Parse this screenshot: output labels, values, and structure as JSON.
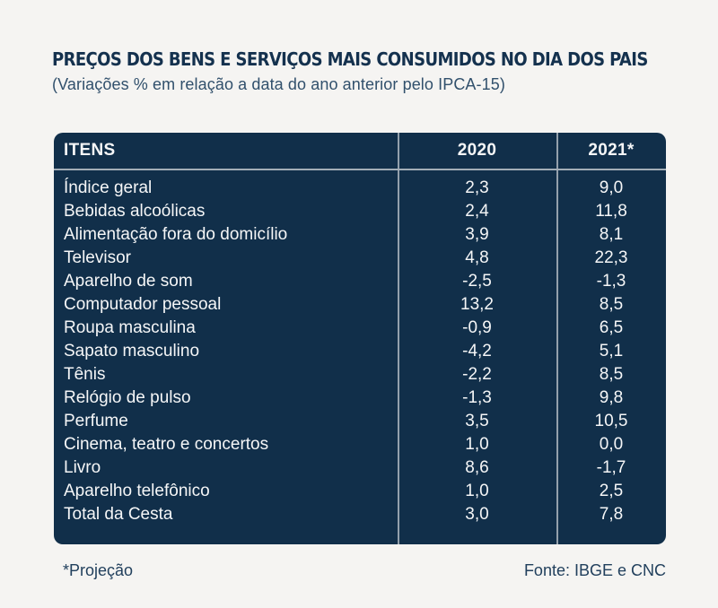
{
  "page": {
    "title": "PREÇOS DOS BENS E SERVIÇOS MAIS CONSUMIDOS NO DIA DOS PAIS",
    "subtitle": "(Variações % em relação a data do ano anterior pelo IPCA-15)",
    "footnote": "*Projeção",
    "source": "Fonte: IBGE e CNC"
  },
  "colors": {
    "page_background": "#f5f4f2",
    "table_background": "#112f4a",
    "table_text": "#f5f6f7",
    "divider_line": "#93a0ac",
    "heading_text": "#14314e",
    "subtitle_text": "#31506c",
    "footer_text": "#22405d"
  },
  "chart_data": {
    "type": "table",
    "title": "PREÇOS DOS BENS E SERVIÇOS MAIS CONSUMIDOS NO DIA DOS PAIS",
    "subtitle": "(Variações % em relação a data do ano anterior pelo IPCA-15)",
    "columns": [
      "ITENS",
      "2020",
      "2021*"
    ],
    "rows": [
      {
        "item": "Índice geral",
        "v2020": "2,3",
        "v2021": "9,0"
      },
      {
        "item": "Bebidas alcoólicas",
        "v2020": "2,4",
        "v2021": "11,8"
      },
      {
        "item": "Alimentação fora do domicílio",
        "v2020": "3,9",
        "v2021": "8,1"
      },
      {
        "item": "Televisor",
        "v2020": "4,8",
        "v2021": "22,3"
      },
      {
        "item": "Aparelho de som",
        "v2020": "-2,5",
        "v2021": "-1,3"
      },
      {
        "item": "Computador pessoal",
        "v2020": "13,2",
        "v2021": "8,5"
      },
      {
        "item": "Roupa masculina",
        "v2020": "-0,9",
        "v2021": "6,5"
      },
      {
        "item": "Sapato masculino",
        "v2020": "-4,2",
        "v2021": "5,1"
      },
      {
        "item": "Tênis",
        "v2020": "-2,2",
        "v2021": "8,5"
      },
      {
        "item": "Relógio de pulso",
        "v2020": "-1,3",
        "v2021": "9,8"
      },
      {
        "item": "Perfume",
        "v2020": "3,5",
        "v2021": "10,5"
      },
      {
        "item": "Cinema, teatro e concertos",
        "v2020": "1,0",
        "v2021": "0,0"
      },
      {
        "item": "Livro",
        "v2020": "8,6",
        "v2021": "-1,7"
      },
      {
        "item": "Aparelho telefônico",
        "v2020": "1,0",
        "v2021": "2,5"
      },
      {
        "item": "Total da Cesta",
        "v2020": "3,0",
        "v2021": "7,8"
      }
    ],
    "footnote": "*Projeção",
    "source": "Fonte: IBGE e CNC"
  }
}
